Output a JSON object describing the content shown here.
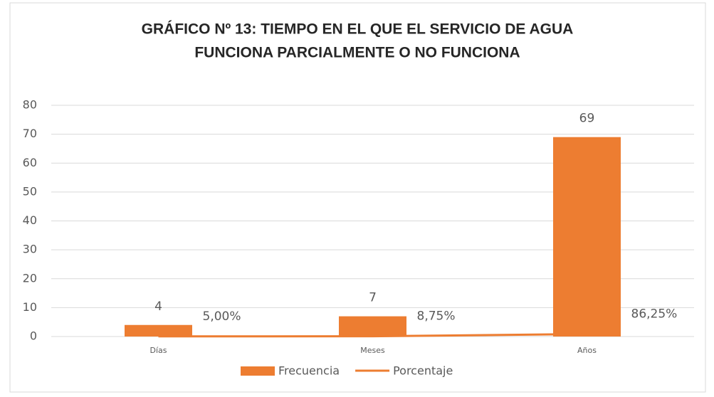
{
  "chart_data": {
    "type": "bar_line",
    "title": [
      "GRÁFICO Nº 13: TIEMPO EN EL QUE EL  SERVICIO DE AGUA",
      "FUNCIONA PARCIALMENTE O NO FUNCIONA"
    ],
    "categories": [
      "Días",
      "Meses",
      "Años"
    ],
    "series": [
      {
        "name": "Frecuencia",
        "type": "bar",
        "color": "#ed7d31",
        "values": [
          4,
          7,
          69
        ]
      },
      {
        "name": "Porcentaje",
        "type": "line",
        "color": "#ed7d31",
        "values": [
          0.05,
          0.0875,
          0.8625
        ],
        "value_labels": [
          "5,00%",
          "8,75%",
          "86,25%"
        ]
      }
    ],
    "ylim": [
      0,
      80
    ],
    "yticks": [
      0,
      10,
      20,
      30,
      40,
      50,
      60,
      70,
      80
    ],
    "grid": true,
    "legend": "bottom"
  }
}
